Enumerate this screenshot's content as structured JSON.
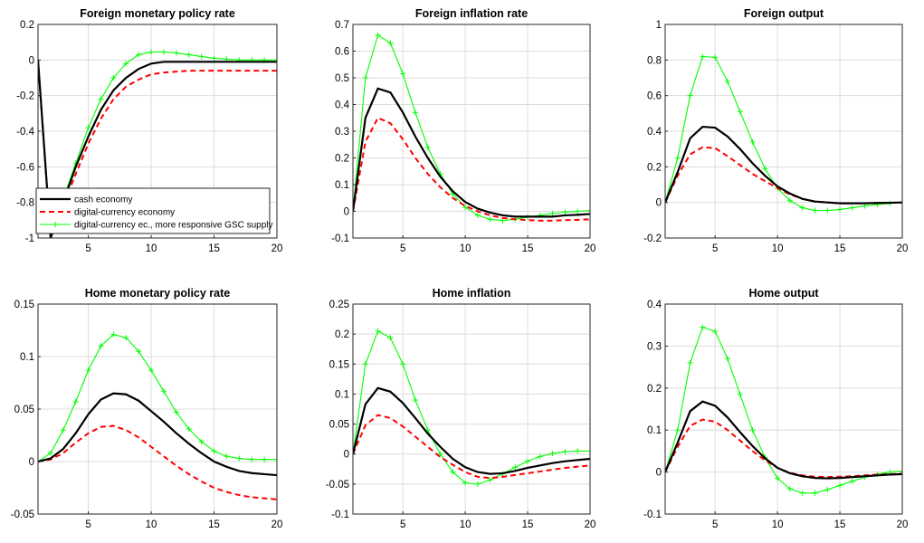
{
  "legend": {
    "entries": [
      "cash economy",
      "digital-currency economy",
      "digital-currency ec., more responsive GSC supply"
    ]
  },
  "colors": {
    "cash": "#000000",
    "digital": "#ff0000",
    "gsc": "#00ff00",
    "grid": "#dcdcdc",
    "axis": "#262626"
  },
  "chart_data": [
    {
      "type": "line",
      "title": "Foreign monetary policy rate",
      "xlabel": "",
      "ylabel": "",
      "xlim": [
        1,
        20
      ],
      "ylim": [
        -1,
        0.2
      ],
      "xticks": [
        5,
        10,
        15,
        20
      ],
      "yticks": [
        -1,
        -0.8,
        -0.6,
        -0.4,
        -0.2,
        0,
        0.2
      ],
      "ytick_labels": [
        "-1",
        "-0.8",
        "-0.6",
        "-0.4",
        "-0.2",
        "0",
        "0.2"
      ],
      "grid": true,
      "legend_position": "bottom-left",
      "x": [
        1,
        2,
        3,
        4,
        5,
        6,
        7,
        8,
        9,
        10,
        11,
        12,
        13,
        14,
        15,
        16,
        17,
        18,
        19,
        20
      ],
      "series": [
        {
          "name": "cash economy",
          "style": "solid",
          "values": [
            0,
            -1.0,
            -0.8,
            -0.6,
            -0.43,
            -0.28,
            -0.17,
            -0.1,
            -0.05,
            -0.02,
            -0.01,
            -0.01,
            -0.01,
            -0.01,
            -0.01,
            -0.01,
            -0.01,
            -0.01,
            -0.01,
            -0.01
          ]
        },
        {
          "name": "digital-currency economy",
          "style": "dashed",
          "values": [
            0,
            -1.0,
            -0.82,
            -0.64,
            -0.47,
            -0.33,
            -0.22,
            -0.15,
            -0.11,
            -0.08,
            -0.07,
            -0.065,
            -0.06,
            -0.06,
            -0.06,
            -0.06,
            -0.06,
            -0.06,
            -0.06,
            -0.06
          ]
        },
        {
          "name": "digital-currency ec., more responsive GSC supply",
          "style": "marker",
          "values": [
            0,
            -1.0,
            -0.78,
            -0.58,
            -0.38,
            -0.22,
            -0.1,
            -0.02,
            0.03,
            0.045,
            0.045,
            0.04,
            0.03,
            0.02,
            0.01,
            0.005,
            0,
            0,
            0,
            0
          ]
        }
      ]
    },
    {
      "type": "line",
      "title": "Foreign inflation rate",
      "xlabel": "",
      "ylabel": "",
      "xlim": [
        1,
        20
      ],
      "ylim": [
        -0.1,
        0.7
      ],
      "xticks": [
        5,
        10,
        15,
        20
      ],
      "yticks": [
        -0.1,
        0,
        0.1,
        0.2,
        0.3,
        0.4,
        0.5,
        0.6,
        0.7
      ],
      "ytick_labels": [
        "-0.1",
        "0",
        "0.1",
        "0.2",
        "0.3",
        "0.4",
        "0.5",
        "0.6",
        "0.7"
      ],
      "grid": true,
      "x": [
        1,
        2,
        3,
        4,
        5,
        6,
        7,
        8,
        9,
        10,
        11,
        12,
        13,
        14,
        15,
        16,
        17,
        18,
        19,
        20
      ],
      "series": [
        {
          "name": "cash economy",
          "style": "solid",
          "values": [
            0,
            0.35,
            0.46,
            0.445,
            0.37,
            0.28,
            0.2,
            0.13,
            0.075,
            0.035,
            0.01,
            -0.005,
            -0.015,
            -0.02,
            -0.02,
            -0.02,
            -0.02,
            -0.015,
            -0.013,
            -0.01
          ]
        },
        {
          "name": "digital-currency economy",
          "style": "dashed",
          "values": [
            0,
            0.26,
            0.35,
            0.33,
            0.27,
            0.2,
            0.14,
            0.09,
            0.05,
            0.02,
            0,
            -0.015,
            -0.025,
            -0.03,
            -0.033,
            -0.035,
            -0.035,
            -0.033,
            -0.032,
            -0.03
          ]
        },
        {
          "name": "digital-currency ec., more responsive GSC supply",
          "style": "marker",
          "values": [
            0,
            0.5,
            0.66,
            0.63,
            0.515,
            0.37,
            0.24,
            0.14,
            0.065,
            0.015,
            -0.015,
            -0.03,
            -0.035,
            -0.03,
            -0.022,
            -0.015,
            -0.008,
            -0.003,
            0,
            0.003
          ]
        }
      ]
    },
    {
      "type": "line",
      "title": "Foreign output",
      "xlabel": "",
      "ylabel": "",
      "xlim": [
        1,
        20
      ],
      "ylim": [
        -0.2,
        1
      ],
      "xticks": [
        5,
        10,
        15,
        20
      ],
      "yticks": [
        -0.2,
        0,
        0.2,
        0.4,
        0.6,
        0.8,
        1
      ],
      "ytick_labels": [
        "-0.2",
        "0",
        "0.2",
        "0.4",
        "0.6",
        "0.8",
        "1"
      ],
      "grid": true,
      "x": [
        1,
        2,
        3,
        4,
        5,
        6,
        7,
        8,
        9,
        10,
        11,
        12,
        13,
        14,
        15,
        16,
        17,
        18,
        19,
        20
      ],
      "series": [
        {
          "name": "cash economy",
          "style": "solid",
          "values": [
            0,
            0.17,
            0.36,
            0.425,
            0.42,
            0.37,
            0.3,
            0.22,
            0.15,
            0.09,
            0.05,
            0.02,
            0.005,
            0,
            -0.005,
            -0.005,
            -0.005,
            -0.003,
            -0.002,
            0
          ]
        },
        {
          "name": "digital-currency economy",
          "style": "dashed",
          "values": [
            0,
            0.15,
            0.27,
            0.31,
            0.305,
            0.26,
            0.21,
            0.16,
            0.12,
            0.08,
            0.045,
            0.02,
            0.005,
            0,
            -0.005,
            -0.005,
            -0.005,
            -0.003,
            -0.002,
            0
          ]
        },
        {
          "name": "digital-currency ec., more responsive GSC supply",
          "style": "marker",
          "values": [
            0,
            0.25,
            0.6,
            0.82,
            0.815,
            0.68,
            0.51,
            0.34,
            0.19,
            0.08,
            0.01,
            -0.03,
            -0.045,
            -0.045,
            -0.04,
            -0.03,
            -0.02,
            -0.012,
            -0.005,
            0
          ]
        }
      ]
    },
    {
      "type": "line",
      "title": "Home monetary policy rate",
      "xlabel": "",
      "ylabel": "",
      "xlim": [
        1,
        20
      ],
      "ylim": [
        -0.05,
        0.15
      ],
      "xticks": [
        5,
        10,
        15,
        20
      ],
      "yticks": [
        -0.05,
        0,
        0.05,
        0.1,
        0.15
      ],
      "ytick_labels": [
        "-0.05",
        "0",
        "0.05",
        "0.1",
        "0.15"
      ],
      "grid": true,
      "x": [
        1,
        2,
        3,
        4,
        5,
        6,
        7,
        8,
        9,
        10,
        11,
        12,
        13,
        14,
        15,
        16,
        17,
        18,
        19,
        20
      ],
      "series": [
        {
          "name": "cash economy",
          "style": "solid",
          "values": [
            0,
            0.003,
            0.012,
            0.027,
            0.045,
            0.059,
            0.065,
            0.064,
            0.058,
            0.048,
            0.038,
            0.027,
            0.017,
            0.008,
            0,
            -0.005,
            -0.009,
            -0.011,
            -0.012,
            -0.013
          ]
        },
        {
          "name": "digital-currency economy",
          "style": "dashed",
          "values": [
            0,
            0.002,
            0.008,
            0.018,
            0.027,
            0.033,
            0.034,
            0.03,
            0.023,
            0.014,
            0.005,
            -0.004,
            -0.012,
            -0.019,
            -0.025,
            -0.029,
            -0.032,
            -0.034,
            -0.035,
            -0.036
          ]
        },
        {
          "name": "digital-currency ec., more responsive GSC supply",
          "style": "marker",
          "values": [
            0,
            0.008,
            0.03,
            0.057,
            0.087,
            0.11,
            0.121,
            0.118,
            0.105,
            0.087,
            0.067,
            0.047,
            0.031,
            0.019,
            0.01,
            0.005,
            0.003,
            0.002,
            0.002,
            0.002
          ]
        }
      ]
    },
    {
      "type": "line",
      "title": "Home inflation",
      "xlabel": "",
      "ylabel": "",
      "xlim": [
        1,
        20
      ],
      "ylim": [
        -0.1,
        0.25
      ],
      "xticks": [
        5,
        10,
        15,
        20
      ],
      "yticks": [
        -0.1,
        -0.05,
        0,
        0.05,
        0.1,
        0.15,
        0.2,
        0.25
      ],
      "ytick_labels": [
        "-0.1",
        "-0.05",
        "0",
        "0.05",
        "0.1",
        "0.15",
        "0.2",
        "0.25"
      ],
      "grid": true,
      "x": [
        1,
        2,
        3,
        4,
        5,
        6,
        7,
        8,
        9,
        10,
        11,
        12,
        13,
        14,
        15,
        16,
        17,
        18,
        19,
        20
      ],
      "series": [
        {
          "name": "cash economy",
          "style": "solid",
          "values": [
            0,
            0.083,
            0.11,
            0.104,
            0.085,
            0.06,
            0.034,
            0.012,
            -0.008,
            -0.022,
            -0.03,
            -0.033,
            -0.032,
            -0.028,
            -0.023,
            -0.019,
            -0.015,
            -0.012,
            -0.01,
            -0.008
          ]
        },
        {
          "name": "digital-currency economy",
          "style": "dashed",
          "values": [
            0,
            0.048,
            0.065,
            0.06,
            0.046,
            0.029,
            0.012,
            -0.005,
            -0.018,
            -0.03,
            -0.038,
            -0.04,
            -0.038,
            -0.035,
            -0.032,
            -0.029,
            -0.026,
            -0.023,
            -0.021,
            -0.019
          ]
        },
        {
          "name": "digital-currency ec., more responsive GSC supply",
          "style": "marker",
          "values": [
            0,
            0.15,
            0.205,
            0.194,
            0.15,
            0.09,
            0.04,
            0,
            -0.03,
            -0.048,
            -0.05,
            -0.043,
            -0.033,
            -0.022,
            -0.012,
            -0.004,
            0.001,
            0.004,
            0.005,
            0.005
          ]
        }
      ]
    },
    {
      "type": "line",
      "title": "Home output",
      "xlabel": "",
      "ylabel": "",
      "xlim": [
        1,
        20
      ],
      "ylim": [
        -0.1,
        0.4
      ],
      "xticks": [
        5,
        10,
        15,
        20
      ],
      "yticks": [
        -0.1,
        0,
        0.1,
        0.2,
        0.3,
        0.4
      ],
      "ytick_labels": [
        "-0.1",
        "0",
        "0.1",
        "0.2",
        "0.3",
        "0.4"
      ],
      "grid": true,
      "x": [
        1,
        2,
        3,
        4,
        5,
        6,
        7,
        8,
        9,
        10,
        11,
        12,
        13,
        14,
        15,
        16,
        17,
        18,
        19,
        20
      ],
      "series": [
        {
          "name": "cash economy",
          "style": "solid",
          "values": [
            0,
            0.07,
            0.145,
            0.168,
            0.158,
            0.13,
            0.095,
            0.062,
            0.033,
            0.01,
            -0.003,
            -0.01,
            -0.014,
            -0.015,
            -0.014,
            -0.012,
            -0.01,
            -0.008,
            -0.006,
            -0.005
          ]
        },
        {
          "name": "digital-currency economy",
          "style": "dashed",
          "values": [
            0,
            0.06,
            0.11,
            0.125,
            0.12,
            0.1,
            0.075,
            0.05,
            0.028,
            0.01,
            -0.002,
            -0.008,
            -0.011,
            -0.012,
            -0.011,
            -0.01,
            -0.008,
            -0.006,
            -0.005,
            -0.004
          ]
        },
        {
          "name": "digital-currency ec., more responsive GSC supply",
          "style": "marker",
          "values": [
            0,
            0.1,
            0.26,
            0.345,
            0.335,
            0.27,
            0.185,
            0.1,
            0.035,
            -0.015,
            -0.04,
            -0.05,
            -0.05,
            -0.042,
            -0.032,
            -0.022,
            -0.012,
            -0.005,
            0,
            0.002
          ]
        }
      ]
    }
  ]
}
